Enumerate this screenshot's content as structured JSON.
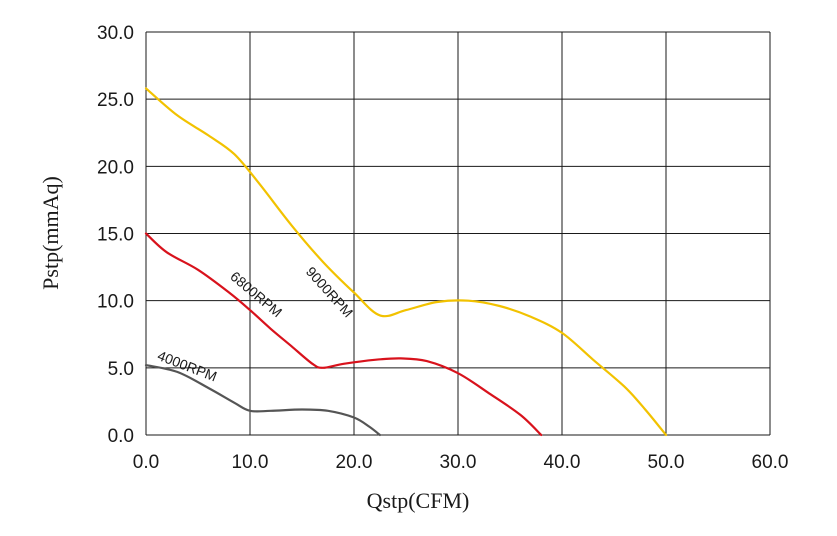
{
  "chart_data": {
    "type": "line",
    "title": "",
    "xlabel": "Qstp(CFM)",
    "ylabel": "Pstp(mmAq)",
    "xlim": [
      0,
      60
    ],
    "ylim": [
      0,
      30
    ],
    "x_ticks": [
      "0.0",
      "10.0",
      "20.0",
      "30.0",
      "40.0",
      "50.0",
      "60.0"
    ],
    "y_ticks": [
      "0.0",
      "5.0",
      "10.0",
      "15.0",
      "20.0",
      "25.0",
      "30.0"
    ],
    "grid": true,
    "legend": "none",
    "series": [
      {
        "name": "9000RPM",
        "color": "#f2c200",
        "points": [
          [
            0,
            25.8
          ],
          [
            3,
            23.8
          ],
          [
            6,
            22.3
          ],
          [
            8.5,
            20.9
          ],
          [
            11,
            18.6
          ],
          [
            14,
            15.6
          ],
          [
            17,
            12.9
          ],
          [
            20,
            10.6
          ],
          [
            22.5,
            8.9
          ],
          [
            25,
            9.3
          ],
          [
            28,
            9.9
          ],
          [
            31,
            10.0
          ],
          [
            34,
            9.6
          ],
          [
            37,
            8.8
          ],
          [
            40,
            7.6
          ],
          [
            43,
            5.6
          ],
          [
            46,
            3.6
          ],
          [
            48,
            1.9
          ],
          [
            50,
            0
          ]
        ]
      },
      {
        "name": "6800RPM",
        "color": "#d8121c",
        "points": [
          [
            0,
            15.0
          ],
          [
            2,
            13.6
          ],
          [
            5,
            12.3
          ],
          [
            8,
            10.6
          ],
          [
            10,
            9.3
          ],
          [
            12,
            7.9
          ],
          [
            14,
            6.6
          ],
          [
            16,
            5.3
          ],
          [
            17,
            5.0
          ],
          [
            19,
            5.3
          ],
          [
            22,
            5.6
          ],
          [
            24.5,
            5.7
          ],
          [
            27,
            5.5
          ],
          [
            30,
            4.6
          ],
          [
            33,
            3.1
          ],
          [
            36,
            1.5
          ],
          [
            38,
            0
          ]
        ]
      },
      {
        "name": "4000RPM",
        "color": "#555555",
        "points": [
          [
            0,
            5.2
          ],
          [
            3,
            4.7
          ],
          [
            6,
            3.5
          ],
          [
            8.5,
            2.4
          ],
          [
            10,
            1.8
          ],
          [
            12,
            1.8
          ],
          [
            15,
            1.9
          ],
          [
            17.5,
            1.8
          ],
          [
            20,
            1.3
          ],
          [
            21.5,
            0.6
          ],
          [
            22.5,
            0
          ]
        ]
      }
    ],
    "series_labels": [
      {
        "text": "9000RPM",
        "x": 17.3,
        "y": 10.4,
        "angle": 48
      },
      {
        "text": "6800RPM",
        "x": 10.3,
        "y": 10.2,
        "angle": 40
      },
      {
        "text": "4000RPM",
        "x": 3.8,
        "y": 4.8,
        "angle": 21
      }
    ]
  }
}
